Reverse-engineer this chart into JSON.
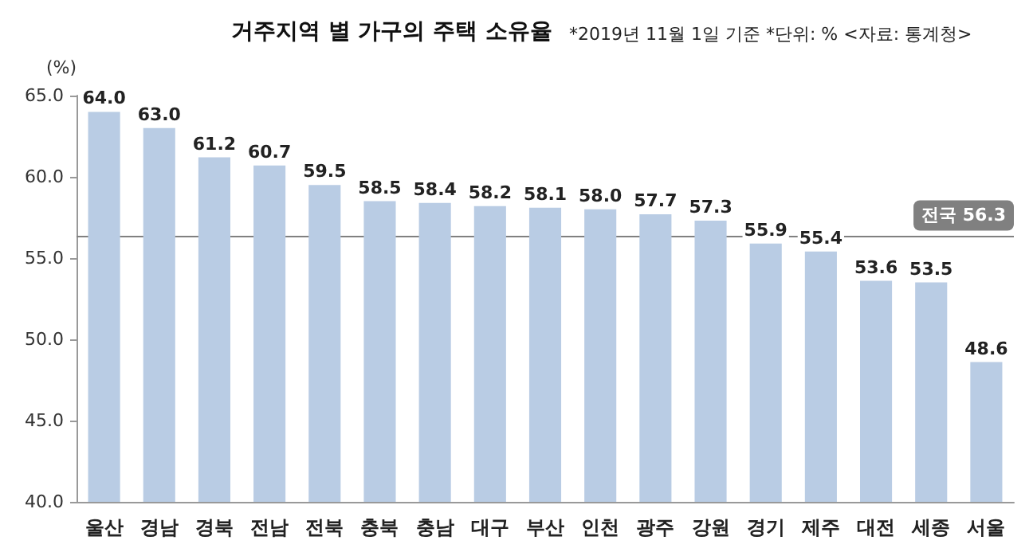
{
  "chart_data": {
    "type": "bar",
    "title": "거주지역 별 가구의 주택 소유율",
    "subtitle": "*2019년 11월 1일 기준 *단위: % <자료: 통계청>",
    "ylabel": "(%)",
    "categories": [
      "울산",
      "경남",
      "경북",
      "전남",
      "전북",
      "충북",
      "충남",
      "대구",
      "부산",
      "인천",
      "광주",
      "강원",
      "경기",
      "제주",
      "대전",
      "세종",
      "서울"
    ],
    "values": [
      64.0,
      63.0,
      61.2,
      60.7,
      59.5,
      58.5,
      58.4,
      58.2,
      58.1,
      58.0,
      57.7,
      57.3,
      55.9,
      55.4,
      53.6,
      53.5,
      48.6
    ],
    "value_labels": [
      "64.0",
      "63.0",
      "61.2",
      "60.7",
      "59.5",
      "58.5",
      "58.4",
      "58.2",
      "58.1",
      "58.0",
      "57.7",
      "57.3",
      "55.9",
      "55.4",
      "53.6",
      "53.5",
      "48.6"
    ],
    "color": "#b9cce4",
    "ylim": [
      40,
      65
    ],
    "yticks": [
      {
        "value": 40,
        "label": "40.0"
      },
      {
        "value": 45,
        "label": "45.0"
      },
      {
        "value": 50,
        "label": "50.0"
      },
      {
        "value": 55,
        "label": "55.0"
      },
      {
        "value": 60,
        "label": "60.0"
      },
      {
        "value": 65,
        "label": "65.0"
      }
    ],
    "ref_lines": [
      {
        "axis": "y",
        "value": 56.3,
        "label": "전국 56.3",
        "color": "#808080"
      }
    ],
    "grid": false
  }
}
